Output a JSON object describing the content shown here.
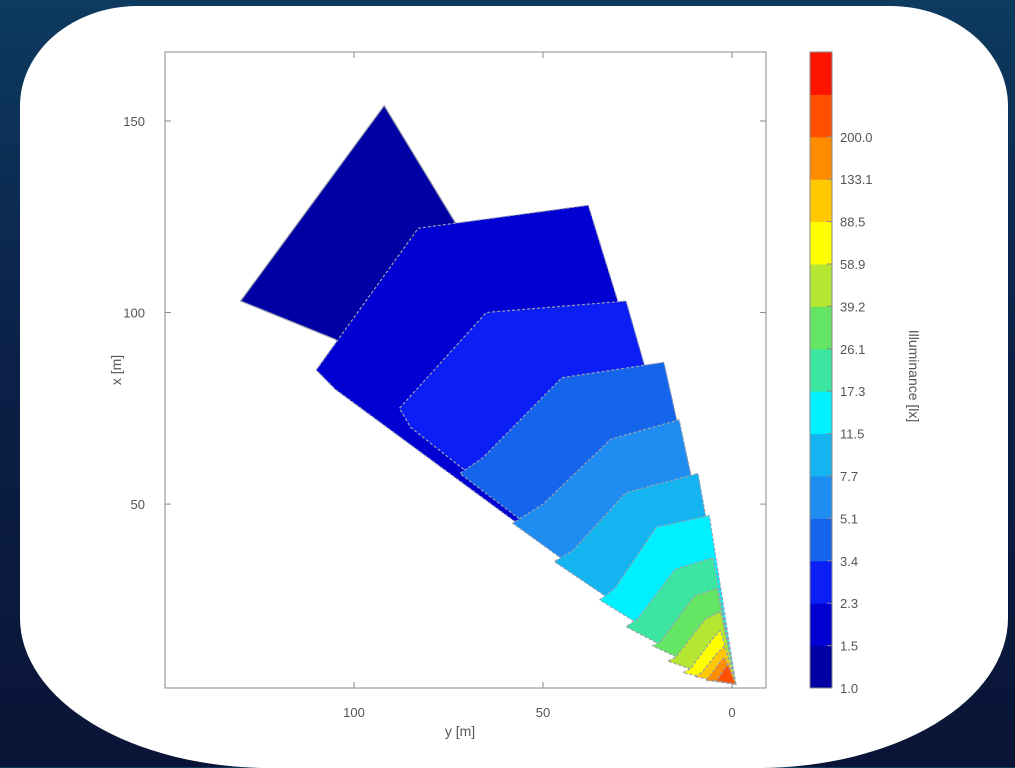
{
  "chart_data": {
    "type": "contour",
    "xlabel": "y [m]",
    "ylabel": "x [m]",
    "x_axis": {
      "ticks": [
        100,
        50,
        0
      ],
      "lim": [
        150,
        -9
      ],
      "reversed": true
    },
    "y_axis": {
      "ticks": [
        50,
        100,
        150
      ],
      "lim": [
        2,
        168
      ]
    },
    "colorbar": {
      "label": "Illuminance [lx]",
      "levels": [
        "1.0",
        "1.5",
        "2.3",
        "3.4",
        "5.1",
        "7.7",
        "11.5",
        "17.3",
        "26.1",
        "39.2",
        "58.9",
        "88.5",
        "133.1",
        "200.0"
      ],
      "colors": [
        "#0000a4",
        "#0000d2",
        "#0a1ef5",
        "#1464ec",
        "#1e8cf0",
        "#14b4f0",
        "#00f0ff",
        "#3ce6a0",
        "#64e664",
        "#b4e632",
        "#ffff00",
        "#ffc800",
        "#ff8c00",
        "#ff5000",
        "#ff1400"
      ]
    },
    "regions": [
      {
        "level": "1.0",
        "points": [
          [
            -1,
            3
          ],
          [
            92,
            154
          ],
          [
            130,
            103
          ],
          [
            105,
            93
          ]
        ]
      },
      {
        "level": "1.5",
        "points": [
          [
            -1,
            3
          ],
          [
            38,
            128
          ],
          [
            83,
            122
          ],
          [
            110,
            85
          ],
          [
            105,
            80
          ]
        ]
      },
      {
        "level": "2.3",
        "points": [
          [
            -1,
            3
          ],
          [
            28,
            103
          ],
          [
            65,
            100
          ],
          [
            88,
            75
          ],
          [
            85,
            70
          ]
        ]
      },
      {
        "level": "3.4",
        "points": [
          [
            -1,
            3
          ],
          [
            18,
            87
          ],
          [
            45,
            83
          ],
          [
            66,
            62
          ],
          [
            72,
            58
          ]
        ]
      },
      {
        "level": "5.1",
        "points": [
          [
            -1,
            3
          ],
          [
            14,
            72
          ],
          [
            32,
            67
          ],
          [
            50,
            50
          ],
          [
            58,
            45
          ]
        ]
      },
      {
        "level": "7.7",
        "points": [
          [
            -1,
            3
          ],
          [
            9,
            58
          ],
          [
            28,
            53
          ],
          [
            42,
            38
          ],
          [
            47,
            35
          ]
        ]
      },
      {
        "level": "11.5",
        "points": [
          [
            -1,
            3
          ],
          [
            6,
            47
          ],
          [
            20,
            44
          ],
          [
            31,
            28
          ],
          [
            35,
            25
          ]
        ]
      },
      {
        "level": "17.3",
        "points": [
          [
            -1,
            3
          ],
          [
            5,
            36
          ],
          [
            15,
            33
          ],
          [
            25,
            20
          ],
          [
            28,
            18
          ]
        ]
      },
      {
        "level": "26.1",
        "points": [
          [
            -1,
            3
          ],
          [
            4,
            28
          ],
          [
            10,
            26
          ],
          [
            19,
            14
          ],
          [
            21,
            13
          ]
        ]
      },
      {
        "level": "39.2",
        "points": [
          [
            -1,
            3
          ],
          [
            3,
            22
          ],
          [
            7,
            20
          ],
          [
            15,
            10
          ],
          [
            17,
            9
          ]
        ]
      },
      {
        "level": "58.9",
        "points": [
          [
            -1,
            3
          ],
          [
            3,
            17
          ],
          [
            5,
            15
          ],
          [
            11,
            7
          ],
          [
            13,
            6
          ]
        ]
      },
      {
        "level": "88.5",
        "points": [
          [
            -1,
            3
          ],
          [
            2,
            13
          ],
          [
            4,
            11
          ],
          [
            8,
            6
          ],
          [
            10,
            5
          ]
        ]
      },
      {
        "level": "133.1",
        "points": [
          [
            -1,
            3
          ],
          [
            2,
            10
          ],
          [
            3,
            9
          ],
          [
            6,
            5
          ],
          [
            7,
            4
          ]
        ]
      },
      {
        "level": "200.0",
        "points": [
          [
            -1,
            3
          ],
          [
            1,
            8
          ],
          [
            2,
            7
          ],
          [
            4,
            4
          ],
          [
            5,
            4
          ]
        ]
      }
    ]
  }
}
